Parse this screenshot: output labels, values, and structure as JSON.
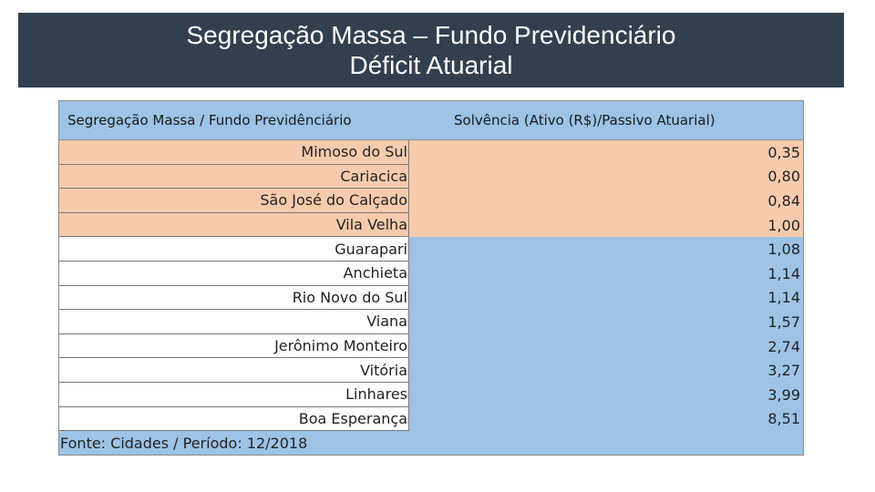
{
  "slide": {
    "title_line1": "Segregação Massa – Fundo Previdenciário",
    "title_line2": "Déficit Atuarial"
  },
  "table": {
    "header": {
      "col1": "Segregação Massa / Fundo Previdênciário",
      "col2": "Solvência (Ativo (R$)/Passivo Atuarial)"
    },
    "rows": [
      {
        "name": "Mimoso do Sul",
        "value": "0,35",
        "highlight": true
      },
      {
        "name": "Cariacica",
        "value": "0,80",
        "highlight": true
      },
      {
        "name": "São José do Calçado",
        "value": "0,84",
        "highlight": true
      },
      {
        "name": "Vila Velha",
        "value": "1,00",
        "highlight": true
      },
      {
        "name": "Guarapari",
        "value": "1,08",
        "highlight": false
      },
      {
        "name": "Anchieta",
        "value": "1,14",
        "highlight": false
      },
      {
        "name": "Rio Novo do Sul",
        "value": "1,14",
        "highlight": false
      },
      {
        "name": "Viana",
        "value": "1,57",
        "highlight": false
      },
      {
        "name": "Jerônimo Monteiro",
        "value": "2,74",
        "highlight": false
      },
      {
        "name": "Vitória",
        "value": "3,27",
        "highlight": false
      },
      {
        "name": "Linhares",
        "value": "3,99",
        "highlight": false
      },
      {
        "name": "Boa Esperança",
        "value": "8,51",
        "highlight": false
      }
    ],
    "footer": "Fonte: Cidades / Período: 12/2018"
  },
  "colors": {
    "title_bg": "#323f4f",
    "header_bg": "#9dc3e6",
    "highlight_bg": "#f8cbad"
  }
}
